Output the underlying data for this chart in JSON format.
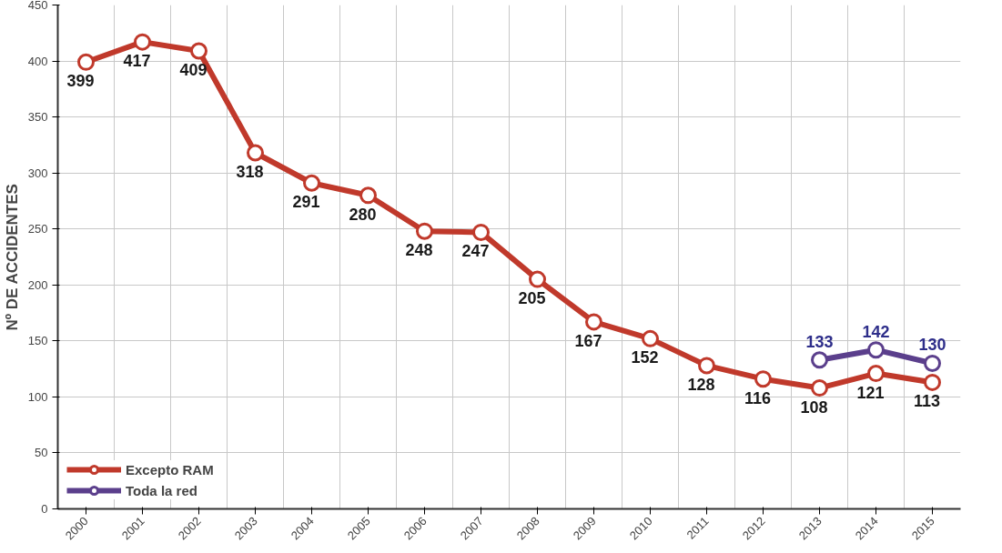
{
  "chart_data": {
    "type": "line",
    "ylabel": "Nº DE ACCIDENTES",
    "categories": [
      "2000",
      "2001",
      "2002",
      "2003",
      "2004",
      "2005",
      "2006",
      "2007",
      "2008",
      "2009",
      "2010",
      "2011",
      "2012",
      "2013",
      "2014",
      "2015"
    ],
    "series": [
      {
        "name": "Excepto RAM",
        "color": "#c0392b",
        "values": [
          399,
          417,
          409,
          318,
          291,
          280,
          248,
          247,
          205,
          167,
          152,
          128,
          116,
          108,
          121,
          113
        ]
      },
      {
        "name": "Toda la red",
        "color": "#5b3f8c",
        "values": [
          null,
          null,
          null,
          null,
          null,
          null,
          null,
          null,
          null,
          null,
          null,
          null,
          null,
          133,
          142,
          130
        ]
      }
    ],
    "ylim": [
      0,
      450
    ],
    "yticks": [
      0,
      50,
      100,
      150,
      200,
      250,
      300,
      350,
      400,
      450
    ],
    "data_labels": true,
    "grid": true,
    "legend": "bottom left",
    "marker": "circle",
    "line_style": "solid"
  }
}
